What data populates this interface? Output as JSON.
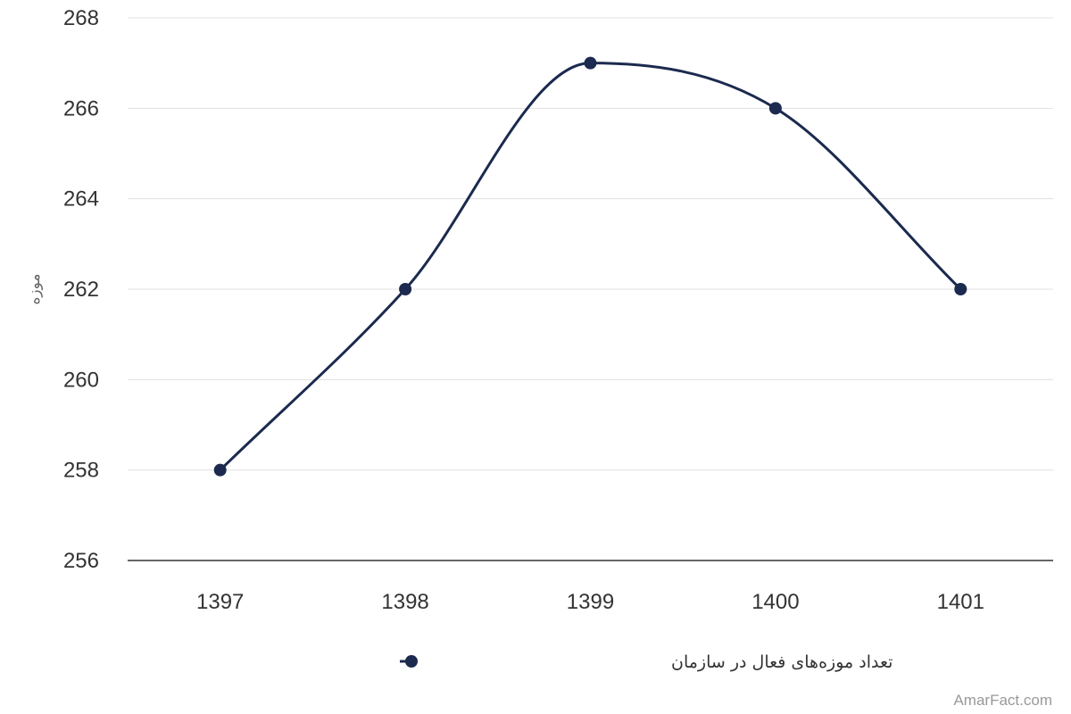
{
  "chart_data": {
    "type": "line",
    "smooth": true,
    "categories": [
      "1397",
      "1398",
      "1399",
      "1400",
      "1401"
    ],
    "series": [
      {
        "name": "تعداد موزه‌های فعال در سازمان",
        "values": [
          258,
          262,
          267,
          266,
          262
        ],
        "color": "#1b2a4e"
      }
    ],
    "title": "",
    "xlabel": "",
    "ylabel": "موزه",
    "ylim": [
      256,
      268
    ],
    "yticks": [
      256,
      258,
      260,
      262,
      264,
      266,
      268
    ],
    "grid": true,
    "legend_position": "bottom-center",
    "credit": "AmarFact.com"
  }
}
